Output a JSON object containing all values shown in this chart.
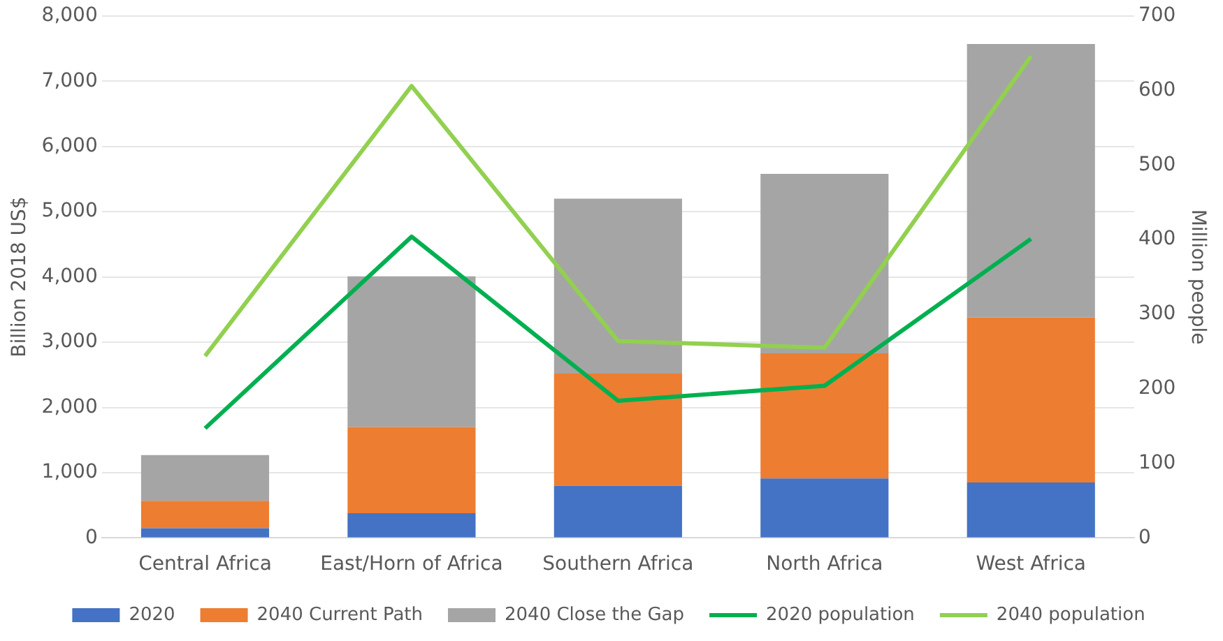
{
  "chart_data": {
    "type": "bar",
    "stacked": true,
    "xlabel": null,
    "ylabel": "Billion 2018 US$",
    "y2label": "Million people",
    "categories": [
      "Central Africa",
      "East/Horn of Africa",
      "Southern Africa",
      "North Africa",
      "West Africa"
    ],
    "series": [
      {
        "name": "2020",
        "color": "#4472c4",
        "values": [
          150,
          380,
          800,
          910,
          850
        ]
      },
      {
        "name": "2040 Current Path",
        "color": "#ed7d31",
        "values": [
          420,
          1320,
          1720,
          1920,
          2530
        ]
      },
      {
        "name": "2040 Close the Gap",
        "color": "#a5a5a5",
        "values": [
          700,
          2310,
          2680,
          2750,
          4190
        ]
      },
      {
        "name": "2020 population",
        "type": "line",
        "axis": "y2",
        "color": "#00b050",
        "values": [
          147,
          404,
          184,
          204,
          401
        ]
      },
      {
        "name": "2040 population",
        "type": "line",
        "axis": "y2",
        "color": "#92d050",
        "values": [
          244,
          606,
          264,
          255,
          646
        ]
      }
    ],
    "ylim": [
      0,
      8000
    ],
    "yticks": [
      {
        "value": 0,
        "label": "0"
      },
      {
        "value": 1000,
        "label": "1,000"
      },
      {
        "value": 2000,
        "label": "2,000"
      },
      {
        "value": 3000,
        "label": "3,000"
      },
      {
        "value": 4000,
        "label": "4,000"
      },
      {
        "value": 5000,
        "label": "5,000"
      },
      {
        "value": 6000,
        "label": "6,000"
      },
      {
        "value": 7000,
        "label": "7,000"
      },
      {
        "value": 8000,
        "label": "8,000"
      }
    ],
    "y2lim": [
      0,
      700
    ],
    "y2ticks": [
      0,
      100,
      200,
      300,
      400,
      500,
      600,
      700
    ],
    "grid": "y",
    "legend": "bottom",
    "marker": "none"
  }
}
